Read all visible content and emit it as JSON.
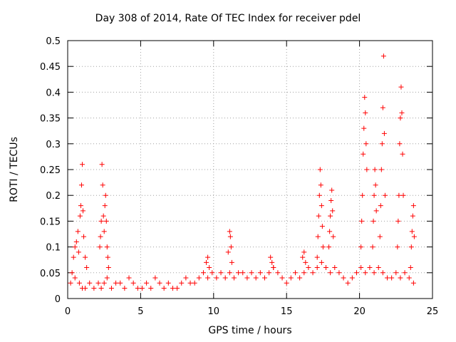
{
  "chart_data": {
    "type": "scatter",
    "title": "Day 308 of 2014, Rate Of TEC Index for receiver pdel",
    "xlabel": "GPS time / hours",
    "ylabel": "ROTI / TECUs",
    "xlim": [
      0,
      25
    ],
    "ylim": [
      0,
      0.5
    ],
    "xticks": [
      0,
      5,
      10,
      15,
      20,
      25
    ],
    "xtick_labels": [
      "0",
      "5",
      "10",
      "15",
      "20",
      "25"
    ],
    "yticks": [
      0,
      0.05,
      0.1,
      0.15,
      0.2,
      0.25,
      0.3,
      0.35,
      0.4,
      0.45,
      0.5
    ],
    "ytick_labels": [
      "0",
      "0.05",
      "0.1",
      "0.15",
      "0.2",
      "0.25",
      "0.3",
      "0.35",
      "0.4",
      "0.45",
      "0.5"
    ],
    "grid": true,
    "marker": "plus",
    "marker_color": "#ff0000",
    "series": [
      {
        "x": [
          0.2,
          0.5,
          0.8,
          1.0,
          1.2,
          1.5,
          1.8,
          2.1,
          2.3,
          2.5,
          2.7,
          3.0,
          3.3,
          3.6,
          3.9,
          4.2,
          4.5,
          4.8,
          5.1,
          5.4,
          5.7,
          6.0,
          6.3,
          6.6,
          6.9,
          7.2,
          7.5,
          7.8,
          8.1,
          8.4,
          8.7,
          9.0,
          9.3,
          9.6,
          9.9,
          10.2,
          10.5,
          10.8,
          11.1,
          11.4,
          11.7,
          12.0,
          12.3,
          12.6,
          12.9,
          13.2,
          13.5,
          13.8,
          14.1,
          14.4,
          14.7,
          15.0,
          15.3,
          15.6,
          15.9,
          16.2,
          16.5,
          16.8,
          17.1,
          17.4,
          17.7,
          18.0,
          18.3,
          18.6,
          18.9,
          19.2,
          19.5,
          19.8,
          20.1,
          20.4,
          20.7,
          21.0,
          21.3,
          21.6,
          21.9,
          22.2,
          22.5,
          22.8,
          23.1,
          23.4,
          23.7,
          0.3,
          0.4,
          0.5,
          0.6,
          0.7,
          0.75,
          0.85,
          0.9,
          0.95,
          1.0,
          1.05,
          1.1,
          1.2,
          1.3,
          2.2,
          2.25,
          2.3,
          2.35,
          2.4,
          2.45,
          2.5,
          2.55,
          2.6,
          2.65,
          2.7,
          2.75,
          2.8,
          9.5,
          9.6,
          9.7,
          11.0,
          11.1,
          11.15,
          11.2,
          11.25,
          13.9,
          14.0,
          14.1,
          16.1,
          16.2,
          16.3,
          17.1,
          17.15,
          17.2,
          17.25,
          17.3,
          17.35,
          17.4,
          17.45,
          17.5,
          17.9,
          17.95,
          18.0,
          18.05,
          18.1,
          18.15,
          18.2,
          20.1,
          20.15,
          20.2,
          20.25,
          20.3,
          20.35,
          20.4,
          20.45,
          20.5,
          20.9,
          20.95,
          21.0,
          21.05,
          21.1,
          21.15,
          21.4,
          21.45,
          21.5,
          21.55,
          21.6,
          21.65,
          21.7,
          21.75,
          22.6,
          22.65,
          22.7,
          22.75,
          22.8,
          22.85,
          22.9,
          22.95,
          23.0,
          23.5,
          23.55,
          23.6,
          23.65,
          23.7,
          23.75
        ],
        "y": [
          0.03,
          0.04,
          0.03,
          0.02,
          0.02,
          0.03,
          0.02,
          0.03,
          0.02,
          0.03,
          0.04,
          0.02,
          0.03,
          0.03,
          0.02,
          0.04,
          0.03,
          0.02,
          0.02,
          0.03,
          0.02,
          0.04,
          0.03,
          0.02,
          0.03,
          0.02,
          0.02,
          0.03,
          0.04,
          0.03,
          0.03,
          0.04,
          0.05,
          0.04,
          0.05,
          0.04,
          0.05,
          0.04,
          0.05,
          0.04,
          0.05,
          0.05,
          0.04,
          0.05,
          0.04,
          0.05,
          0.04,
          0.05,
          0.06,
          0.05,
          0.04,
          0.03,
          0.04,
          0.05,
          0.04,
          0.05,
          0.06,
          0.05,
          0.06,
          0.07,
          0.06,
          0.05,
          0.06,
          0.05,
          0.04,
          0.03,
          0.04,
          0.05,
          0.06,
          0.05,
          0.06,
          0.05,
          0.06,
          0.05,
          0.04,
          0.04,
          0.05,
          0.04,
          0.05,
          0.04,
          0.03,
          0.05,
          0.08,
          0.1,
          0.11,
          0.13,
          0.09,
          0.16,
          0.18,
          0.22,
          0.26,
          0.17,
          0.12,
          0.08,
          0.06,
          0.1,
          0.12,
          0.15,
          0.26,
          0.22,
          0.16,
          0.13,
          0.18,
          0.2,
          0.15,
          0.1,
          0.08,
          0.06,
          0.07,
          0.08,
          0.06,
          0.09,
          0.13,
          0.12,
          0.1,
          0.07,
          0.08,
          0.07,
          0.06,
          0.08,
          0.09,
          0.07,
          0.08,
          0.12,
          0.16,
          0.2,
          0.25,
          0.22,
          0.18,
          0.14,
          0.1,
          0.1,
          0.13,
          0.16,
          0.19,
          0.21,
          0.17,
          0.12,
          0.1,
          0.15,
          0.2,
          0.28,
          0.33,
          0.39,
          0.36,
          0.3,
          0.25,
          0.1,
          0.15,
          0.2,
          0.25,
          0.22,
          0.17,
          0.12,
          0.18,
          0.25,
          0.3,
          0.37,
          0.47,
          0.32,
          0.2,
          0.1,
          0.15,
          0.2,
          0.3,
          0.35,
          0.41,
          0.36,
          0.28,
          0.2,
          0.06,
          0.1,
          0.13,
          0.16,
          0.18,
          0.12
        ]
      }
    ]
  }
}
